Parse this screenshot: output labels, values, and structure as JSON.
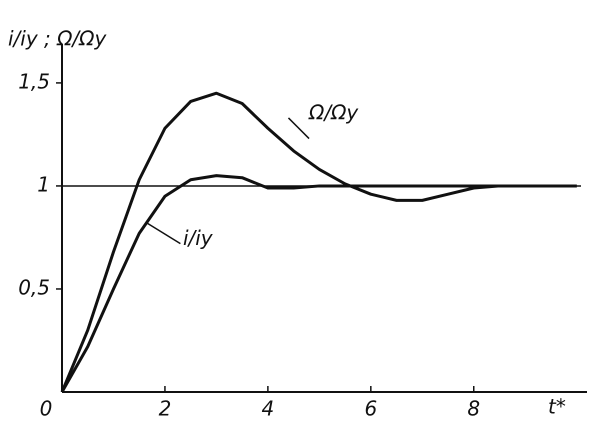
{
  "chart_data": {
    "type": "line",
    "y_label": "i/iy ; Ω/Ωy",
    "x_label": "t*",
    "x": [
      0,
      0.5,
      1,
      1.5,
      2,
      2.5,
      3,
      3.5,
      4,
      4.5,
      5,
      5.5,
      6,
      6.5,
      7,
      7.5,
      8,
      8.5,
      9,
      9.5,
      10
    ],
    "series": [
      {
        "name": "Ω/Ωy",
        "color": "#111111",
        "values": [
          0,
          0.3,
          0.68,
          1.03,
          1.28,
          1.41,
          1.45,
          1.4,
          1.28,
          1.17,
          1.08,
          1.01,
          0.96,
          0.93,
          0.93,
          0.96,
          0.99,
          1,
          1,
          1,
          1
        ]
      },
      {
        "name": "i/iy",
        "color": "#111111",
        "values": [
          0,
          0.22,
          0.5,
          0.77,
          0.95,
          1.03,
          1.05,
          1.04,
          0.99,
          0.99,
          1,
          1,
          1,
          1,
          1,
          1,
          1,
          1,
          1,
          1,
          1
        ]
      }
    ],
    "reference_line": 1,
    "xlim": [
      0,
      10.2
    ],
    "ylim": [
      0,
      1.65
    ],
    "xticks": [
      0,
      2,
      4,
      6,
      8
    ],
    "yticks": [
      {
        "value": 0.5,
        "label": "0,5"
      },
      1,
      {
        "value": 1.5,
        "label": "1,5"
      }
    ]
  }
}
